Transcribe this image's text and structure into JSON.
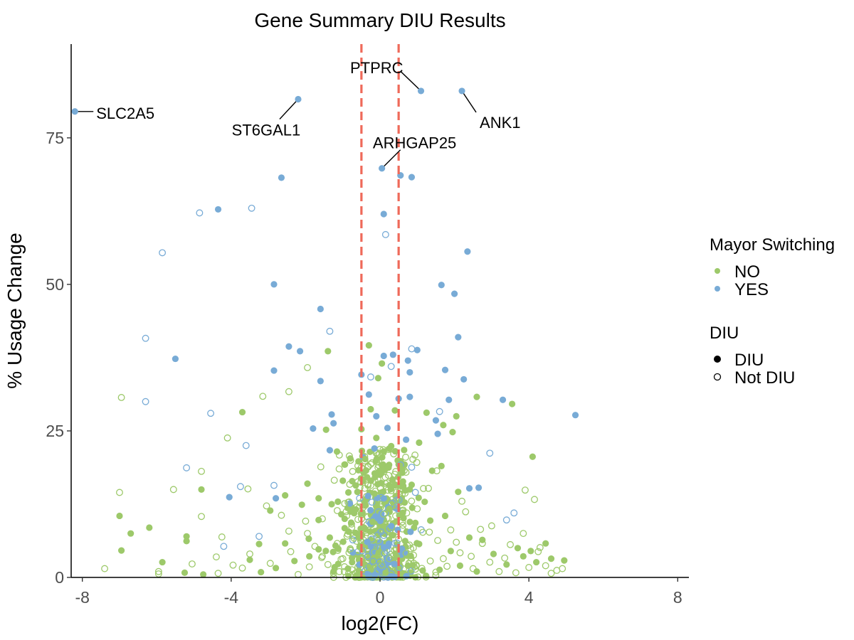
{
  "chart_data": {
    "type": "scatter",
    "title": "Gene Summary DIU Results",
    "xlabel": "log2(FC)",
    "ylabel": "% Usage Change",
    "xlim": [
      -8.3,
      8.3
    ],
    "ylim": [
      0,
      91
    ],
    "x_ticks": [
      -8,
      -4,
      0,
      4,
      8
    ],
    "y_ticks": [
      0,
      25,
      50,
      75
    ],
    "x_tick_labels": [
      "-8",
      "-4",
      "0",
      "4",
      "8"
    ],
    "y_tick_labels": [
      "0",
      "25",
      "50",
      "75"
    ],
    "grid": false,
    "threshold_lines": {
      "x": [
        -0.5,
        0.5
      ],
      "color": "#EF6A5A",
      "style": "dashed"
    },
    "colors": {
      "NO": "#9DC96A",
      "YES": "#78ABD6"
    },
    "legend": {
      "placement": "right",
      "color_title": "Mayor Switching",
      "color_entries": [
        "NO",
        "YES"
      ],
      "shape_title": "DIU",
      "shape_entries": [
        "DIU",
        "Not DIU"
      ]
    },
    "labeled_points": [
      {
        "label": "SLC2A5",
        "x": -8.2,
        "y": 79.5,
        "group": "YES",
        "diu": true
      },
      {
        "label": "ST6GAL1",
        "x": -2.2,
        "y": 81.6,
        "group": "YES",
        "diu": true
      },
      {
        "label": "PTPRC",
        "x": 1.1,
        "y": 83.0,
        "group": "YES",
        "diu": true
      },
      {
        "label": "ANK1",
        "x": 2.2,
        "y": 83.0,
        "group": "YES",
        "diu": true
      },
      {
        "label": "ARHGAP25",
        "x": 0.05,
        "y": 69.8,
        "group": "YES",
        "diu": true
      }
    ],
    "series": [
      {
        "name": "YES / DIU",
        "group": "YES",
        "diu": true,
        "points": [
          [
            -2.65,
            68.2
          ],
          [
            -4.35,
            62.8
          ],
          [
            -2.85,
            50.0
          ],
          [
            -5.5,
            37.3
          ],
          [
            -1.6,
            45.8
          ],
          [
            -2.45,
            39.4
          ],
          [
            -2.15,
            38.6
          ],
          [
            -2.85,
            35.3
          ],
          [
            -1.6,
            33.5
          ],
          [
            -1.3,
            27.8
          ],
          [
            -1.25,
            26.3
          ],
          [
            -1.8,
            25.4
          ],
          [
            -1.35,
            21.7
          ],
          [
            -4.05,
            13.7
          ],
          [
            -2.8,
            13.5
          ],
          [
            0.1,
            62.0
          ],
          [
            0.55,
            68.6
          ],
          [
            0.85,
            68.3
          ],
          [
            1.65,
            49.9
          ],
          [
            2.0,
            48.4
          ],
          [
            2.35,
            55.6
          ],
          [
            2.1,
            41.0
          ],
          [
            1.0,
            38.8
          ],
          [
            0.75,
            37.0
          ],
          [
            0.8,
            35.0
          ],
          [
            1.75,
            35.4
          ],
          [
            2.25,
            33.8
          ],
          [
            0.8,
            30.8
          ],
          [
            0.5,
            30.5
          ],
          [
            1.85,
            30.3
          ],
          [
            3.3,
            30.3
          ],
          [
            5.25,
            27.7
          ],
          [
            1.5,
            26.8
          ],
          [
            1.55,
            24.5
          ],
          [
            0.7,
            23.5
          ],
          [
            2.4,
            15.2
          ],
          [
            2.65,
            15.3
          ],
          [
            0.1,
            37.8
          ],
          [
            0.35,
            38.0
          ],
          [
            -0.5,
            34.6
          ],
          [
            -0.3,
            31.2
          ],
          [
            -0.1,
            27.5
          ],
          [
            0.2,
            25.5
          ],
          [
            -0.15,
            22.0
          ],
          [
            -0.45,
            20.5
          ]
        ]
      },
      {
        "name": "YES / Not DIU",
        "group": "YES",
        "diu": false,
        "points": [
          [
            -4.85,
            62.2
          ],
          [
            -3.45,
            63.0
          ],
          [
            -5.85,
            55.4
          ],
          [
            -6.3,
            40.8
          ],
          [
            -1.35,
            42.0
          ],
          [
            -6.3,
            30.0
          ],
          [
            -4.55,
            28.0
          ],
          [
            -3.6,
            22.5
          ],
          [
            -5.2,
            18.7
          ],
          [
            -3.75,
            15.5
          ],
          [
            -2.85,
            15.7
          ],
          [
            0.15,
            58.5
          ],
          [
            0.85,
            39.0
          ],
          [
            0.3,
            36.0
          ],
          [
            1.6,
            28.3
          ],
          [
            2.95,
            21.2
          ],
          [
            3.4,
            9.8
          ],
          [
            3.6,
            11.0
          ],
          [
            -4.2,
            5.3
          ],
          [
            -3.25,
            7.0
          ],
          [
            -0.25,
            34.2
          ],
          [
            0.55,
            19.2
          ],
          [
            0.85,
            18.8
          ],
          [
            -0.55,
            13.5
          ],
          [
            0.95,
            14.5
          ]
        ]
      },
      {
        "name": "NO / DIU",
        "group": "NO",
        "diu": true,
        "points": [
          [
            -1.4,
            38.6
          ],
          [
            -0.3,
            39.6
          ],
          [
            -0.05,
            34.0
          ],
          [
            0.05,
            36.5
          ],
          [
            -0.25,
            28.7
          ],
          [
            -0.5,
            25.3
          ],
          [
            -0.1,
            23.8
          ],
          [
            0.1,
            21.5
          ],
          [
            -0.4,
            20.2
          ],
          [
            0.3,
            22.4
          ],
          [
            0.4,
            28.5
          ],
          [
            1.25,
            28.1
          ],
          [
            2.05,
            27.5
          ],
          [
            2.6,
            30.8
          ],
          [
            3.55,
            29.6
          ],
          [
            1.95,
            24.8
          ],
          [
            1.05,
            23.0
          ],
          [
            1.7,
            26.0
          ],
          [
            -3.7,
            28.2
          ],
          [
            -1.45,
            25.2
          ],
          [
            -4.8,
            15.0
          ],
          [
            -2.55,
            14.0
          ],
          [
            -2.95,
            11.4
          ],
          [
            -6.7,
            7.5
          ],
          [
            -6.2,
            8.5
          ],
          [
            -7.0,
            10.5
          ],
          [
            -6.95,
            4.6
          ],
          [
            -5.85,
            2.6
          ],
          [
            -5.2,
            7.0
          ],
          [
            -5.2,
            6.2
          ],
          [
            -4.75,
            0.5
          ],
          [
            -5.25,
            0.8
          ],
          [
            -3.25,
            5.7
          ],
          [
            -3.2,
            0.9
          ],
          [
            -2.55,
            5.8
          ],
          [
            -1.65,
            13.5
          ],
          [
            -1.3,
            12.5
          ],
          [
            -1.65,
            9.8
          ],
          [
            -1.95,
            16.0
          ],
          [
            -2.1,
            12.4
          ],
          [
            -1.0,
            16.5
          ],
          [
            -0.8,
            20.3
          ],
          [
            -0.85,
            14.5
          ],
          [
            -0.65,
            11.6
          ],
          [
            -0.95,
            8.4
          ],
          [
            -1.35,
            6.8
          ],
          [
            -1.9,
            3.6
          ],
          [
            -2.3,
            2.8
          ],
          [
            -2.8,
            1.6
          ],
          [
            -3.5,
            3.0
          ],
          [
            1.2,
            12.9
          ],
          [
            1.35,
            9.7
          ],
          [
            1.75,
            10.5
          ],
          [
            1.65,
            19.0
          ],
          [
            1.4,
            18.2
          ],
          [
            2.1,
            14.6
          ],
          [
            2.75,
            6.4
          ],
          [
            3.05,
            4.0
          ],
          [
            3.4,
            2.2
          ],
          [
            3.85,
            3.6
          ],
          [
            4.05,
            4.5
          ],
          [
            4.2,
            2.6
          ],
          [
            4.45,
            5.8
          ],
          [
            4.6,
            3.2
          ],
          [
            4.95,
            2.9
          ],
          [
            4.1,
            20.6
          ],
          [
            3.7,
            5.0
          ],
          [
            2.4,
            6.8
          ],
          [
            2.15,
            2.0
          ],
          [
            1.9,
            4.5
          ],
          [
            0.85,
            15.8
          ],
          [
            0.6,
            18.4
          ],
          [
            -0.35,
            17.1
          ],
          [
            -0.15,
            14.3
          ],
          [
            0.25,
            11.7
          ],
          [
            -0.55,
            5.2
          ],
          [
            0.45,
            3.5
          ],
          [
            -0.25,
            1.5
          ],
          [
            0.15,
            0.8
          ],
          [
            0.75,
            2.0
          ],
          [
            1.05,
            5.7
          ],
          [
            -0.75,
            2.6
          ],
          [
            -1.25,
            1.0
          ],
          [
            -1.65,
            4.8
          ],
          [
            1.6,
            1.3
          ],
          [
            2.6,
            1.0
          ],
          [
            0.95,
            9.3
          ],
          [
            -0.95,
            10.0
          ],
          [
            0.35,
            7.2
          ],
          [
            -0.2,
            9.5
          ]
        ]
      },
      {
        "name": "NO / Not DIU",
        "group": "NO",
        "diu": false,
        "points": [
          [
            -1.95,
            35.8
          ],
          [
            -3.15,
            30.9
          ],
          [
            -2.45,
            31.7
          ],
          [
            -6.95,
            30.7
          ],
          [
            -4.1,
            23.8
          ],
          [
            -7.0,
            14.5
          ],
          [
            -5.55,
            15.0
          ],
          [
            -4.8,
            18.1
          ],
          [
            -3.55,
            15.1
          ],
          [
            -4.8,
            10.4
          ],
          [
            -7.4,
            1.5
          ],
          [
            -5.95,
            1.0
          ],
          [
            -5.95,
            0.6
          ],
          [
            -4.4,
            3.5
          ],
          [
            -4.25,
            6.9
          ],
          [
            -3.95,
            2.1
          ],
          [
            -3.7,
            1.6
          ],
          [
            -3.5,
            4.0
          ],
          [
            -2.95,
            2.4
          ],
          [
            -2.65,
            10.6
          ],
          [
            -2.4,
            4.4
          ],
          [
            -1.95,
            7.5
          ],
          [
            -1.9,
            1.8
          ],
          [
            -1.55,
            3.6
          ],
          [
            -1.25,
            0.7
          ],
          [
            -1.15,
            5.8
          ],
          [
            -0.95,
            12.6
          ],
          [
            -1.0,
            3.2
          ],
          [
            -0.7,
            6.7
          ],
          [
            -0.5,
            10.0
          ],
          [
            -0.35,
            1.7
          ],
          [
            -0.15,
            4.3
          ],
          [
            0.1,
            10.8
          ],
          [
            0.25,
            3.2
          ],
          [
            0.45,
            12.3
          ],
          [
            0.5,
            6.5
          ],
          [
            0.7,
            4.1
          ],
          [
            0.95,
            1.4
          ],
          [
            1.15,
            7.7
          ],
          [
            1.35,
            2.8
          ],
          [
            1.55,
            6.3
          ],
          [
            1.8,
            1.9
          ],
          [
            1.9,
            8.1
          ],
          [
            2.15,
            4.2
          ],
          [
            2.3,
            11.2
          ],
          [
            2.45,
            3.6
          ],
          [
            2.75,
            5.8
          ],
          [
            2.95,
            2.6
          ],
          [
            3.2,
            1.0
          ],
          [
            3.5,
            5.6
          ],
          [
            3.85,
            7.5
          ],
          [
            4.0,
            1.7
          ],
          [
            4.25,
            4.4
          ],
          [
            4.45,
            2.0
          ],
          [
            4.75,
            1.2
          ],
          [
            4.9,
            1.5
          ],
          [
            4.15,
            13.3
          ],
          [
            3.9,
            14.9
          ],
          [
            2.7,
            8.2
          ],
          [
            2.2,
            13.0
          ],
          [
            1.7,
            3.2
          ],
          [
            1.3,
            15.2
          ],
          [
            0.4,
            17.6
          ],
          [
            -0.25,
            19.3
          ],
          [
            -0.6,
            16.3
          ],
          [
            -1.15,
            11.4
          ],
          [
            -1.55,
            10.0
          ],
          [
            -2.0,
            9.6
          ],
          [
            -2.45,
            7.9
          ],
          [
            -3.05,
            12.2
          ],
          [
            -4.35,
            0.7
          ],
          [
            -5.05,
            2.3
          ],
          [
            -2.2,
            0.5
          ],
          [
            -1.75,
            5.3
          ],
          [
            -0.45,
            8.5
          ],
          [
            0.05,
            2.1
          ],
          [
            0.6,
            9.5
          ],
          [
            1.0,
            11.7
          ],
          [
            1.5,
            0.9
          ],
          [
            2.05,
            6.0
          ],
          [
            2.5,
            1.5
          ],
          [
            3.0,
            8.8
          ],
          [
            3.35,
            3.3
          ],
          [
            3.65,
            0.8
          ],
          [
            4.3,
            5.1
          ],
          [
            4.6,
            0.7
          ],
          [
            -0.8,
            4.9
          ],
          [
            -1.4,
            2.2
          ],
          [
            0.3,
            14.8
          ],
          [
            -0.05,
            6.3
          ]
        ]
      }
    ],
    "dense_core": [
      {
        "group": "NO",
        "x_mean": 0.0,
        "x_sd": 0.55,
        "y_max": 22,
        "count": 520
      },
      {
        "group": "YES",
        "x_mean": 0.0,
        "x_sd": 0.35,
        "y_max": 14,
        "count": 90
      }
    ]
  }
}
